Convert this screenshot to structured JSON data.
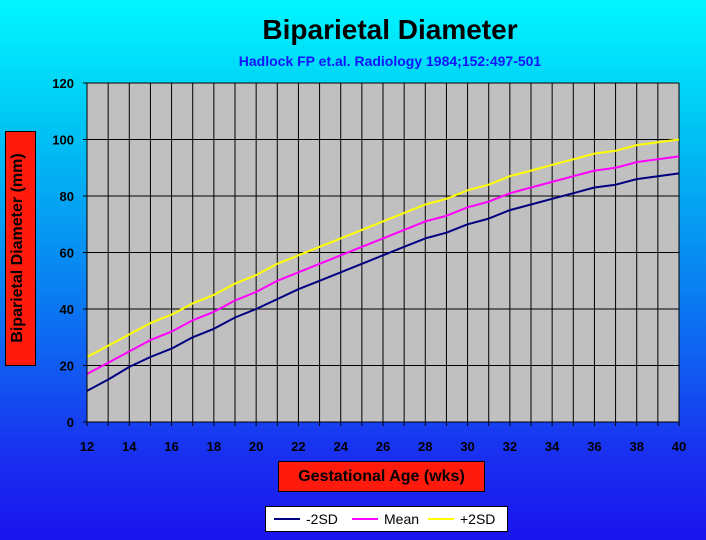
{
  "chart_data": {
    "type": "line",
    "title": "Biparietal Diameter",
    "subtitle": "Hadlock FP et.al. Radiology 1984;152:497-501",
    "xlabel": "Gestational Age (wks)",
    "ylabel": "Biparietal Diameter (mm)",
    "xlim": [
      12,
      40
    ],
    "ylim": [
      0,
      120
    ],
    "xticks": [
      12,
      14,
      16,
      18,
      20,
      22,
      24,
      26,
      28,
      30,
      32,
      34,
      36,
      38,
      40
    ],
    "yticks": [
      0,
      20,
      40,
      60,
      80,
      100,
      120
    ],
    "grid": true,
    "legend_position": "bottom",
    "x": [
      12,
      13,
      14,
      15,
      16,
      17,
      18,
      19,
      20,
      21,
      22,
      23,
      24,
      25,
      26,
      27,
      28,
      29,
      30,
      31,
      32,
      33,
      34,
      35,
      36,
      37,
      38,
      39,
      40
    ],
    "series": [
      {
        "name": "-2SD",
        "color": "#000080",
        "values": [
          11,
          15,
          19.5,
          23,
          26,
          30,
          33,
          37,
          40,
          43.5,
          47,
          50,
          53,
          56,
          59,
          62,
          65,
          67,
          70,
          72,
          75,
          77,
          79,
          81,
          83,
          84,
          86,
          87,
          88
        ]
      },
      {
        "name": "Mean",
        "color": "#ff00ff",
        "values": [
          17,
          21,
          25,
          29,
          32,
          36,
          39,
          43,
          46,
          50,
          53,
          56,
          59,
          62,
          65,
          68,
          71,
          73,
          76,
          78,
          81,
          83,
          85,
          87,
          89,
          90,
          92,
          93,
          94
        ]
      },
      {
        "name": "+2SD",
        "color": "#ffff00",
        "values": [
          23,
          27,
          31,
          35,
          38,
          42,
          45,
          49,
          52,
          56,
          59,
          62,
          65,
          68,
          71,
          74,
          77,
          79,
          82,
          84,
          87,
          89,
          91,
          93,
          95,
          96,
          98,
          99,
          100
        ]
      }
    ]
  }
}
